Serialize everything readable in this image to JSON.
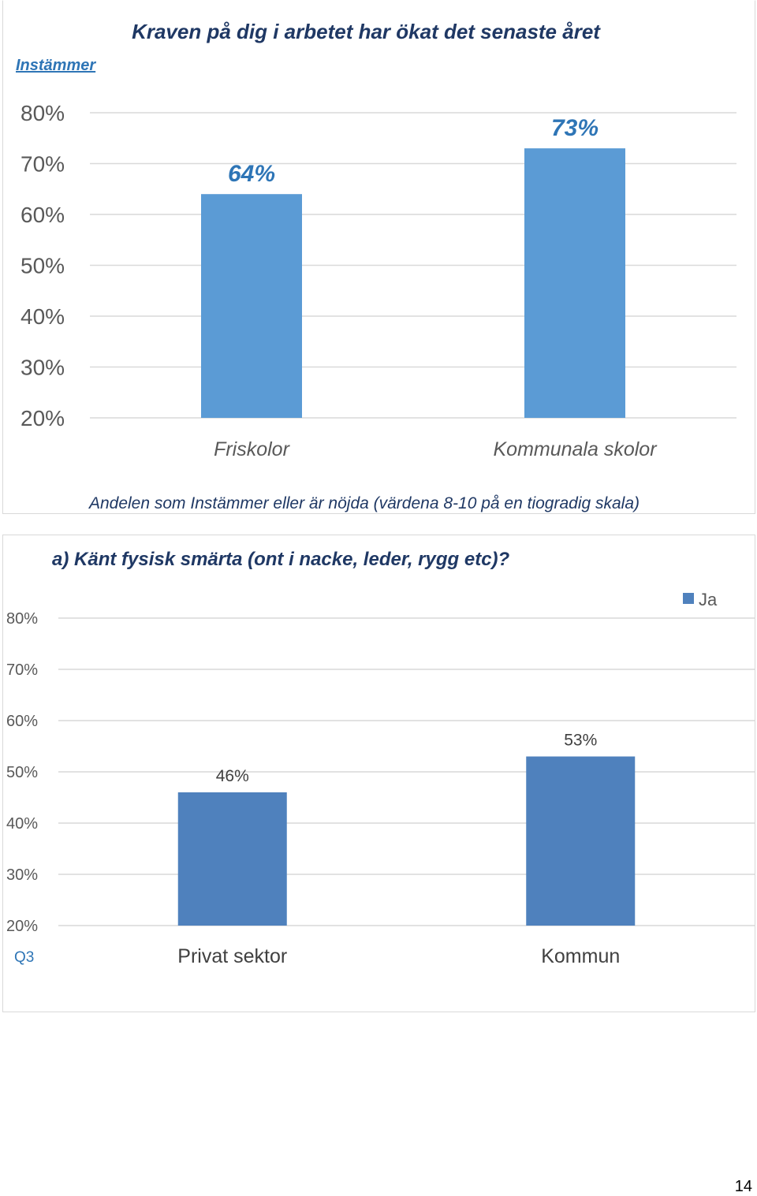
{
  "page": {
    "number": "14"
  },
  "chart_data": [
    {
      "type": "bar",
      "title": "Kraven på dig i arbetet har ökat det senaste året",
      "legend_label": "Instämmer",
      "categories": [
        "Friskolor",
        "Kommunala skolor"
      ],
      "values": [
        64,
        73
      ],
      "value_labels": [
        "64%",
        "73%"
      ],
      "yticks": [
        "20%",
        "30%",
        "40%",
        "50%",
        "60%",
        "70%",
        "80%"
      ],
      "ylim": [
        20,
        80
      ],
      "footnote": "Andelen som Instämmer eller är nöjda (värdena 8-10 på en tiogradig skala)",
      "grid": true,
      "colors": {
        "bar": "#5b9bd5",
        "label": "#2e75b6",
        "tick": "#595959",
        "grid": "#d9d9d9"
      }
    },
    {
      "type": "bar",
      "title": "a) Känt fysisk smärta (ont i nacke, leder, rygg etc)?",
      "corner_label": "Q3",
      "categories": [
        "Privat sektor",
        "Kommun"
      ],
      "series": [
        {
          "name": "Ja",
          "values": [
            46,
            53
          ]
        }
      ],
      "value_labels": [
        "46%",
        "53%"
      ],
      "yticks": [
        "20%",
        "30%",
        "40%",
        "50%",
        "60%",
        "70%",
        "80%"
      ],
      "ylim": [
        20,
        80
      ],
      "legend_position": "top-right",
      "grid": true,
      "colors": {
        "bar": "#4f81bd",
        "title": "#1f3864",
        "label": "#404040",
        "tick": "#595959",
        "grid": "#d9d9d9",
        "corner": "#2e75b6"
      }
    }
  ]
}
